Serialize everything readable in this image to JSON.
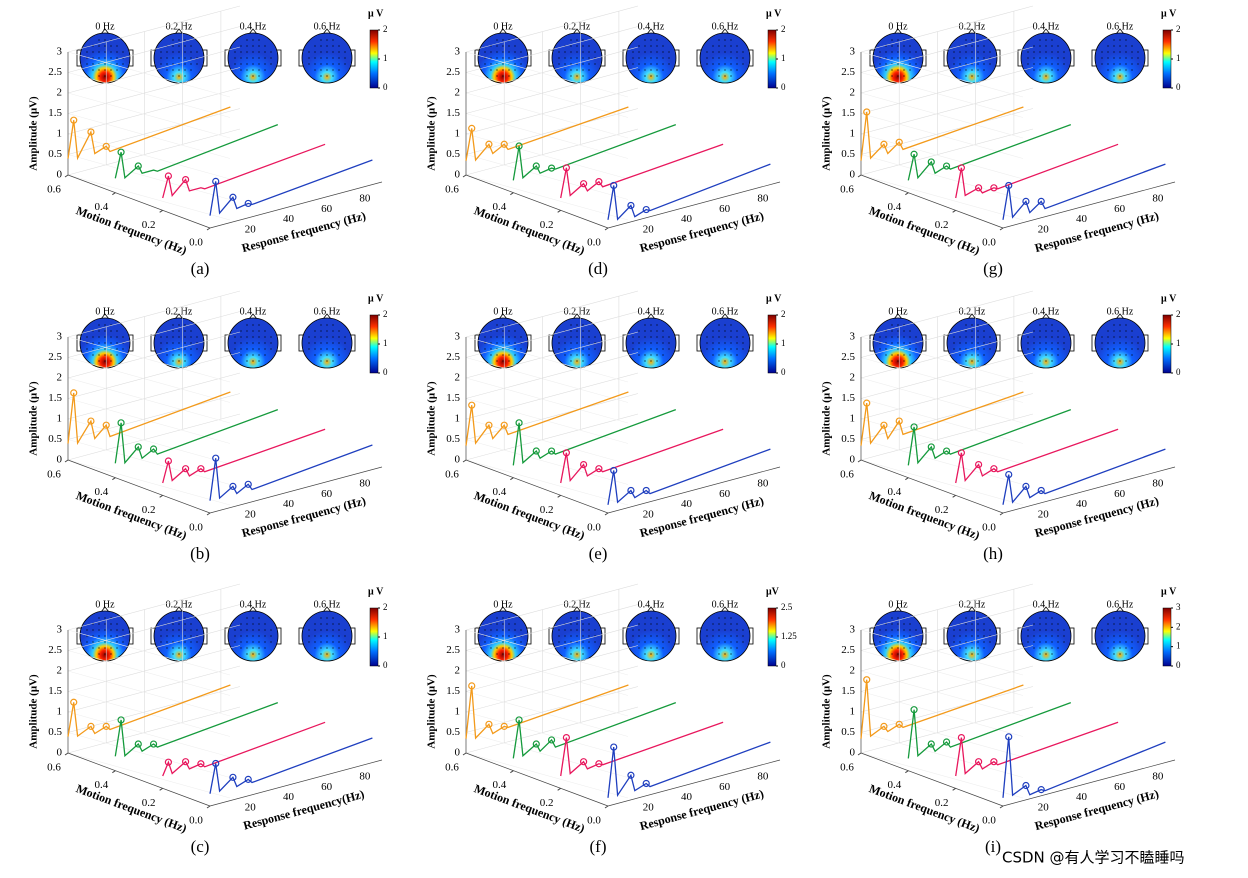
{
  "watermark": "CSDN @有人学习不瞌睡吗",
  "chart_data": [
    {
      "type": "waterfall",
      "label": "(a)",
      "cbar_label": "μ V",
      "cbar_lim": [
        0,
        2
      ],
      "cbar_ticks": [
        0,
        1,
        2
      ],
      "zlabel": "Amplitude (μV)",
      "ylabel": "Motion frequency (Hz)",
      "xlabel": "Response frequency (Hz)",
      "zlim": [
        0,
        3
      ],
      "zticks": [
        0,
        0.5,
        1,
        1.5,
        2,
        2.5,
        3
      ],
      "ylim": [
        0,
        0.6
      ],
      "yticks": [
        0.6,
        0.4,
        0.2,
        {
          "value": 0,
          "label": "0.0"
        }
      ],
      "xlim": [
        0,
        90
      ],
      "xticks": [
        20,
        40,
        60,
        80
      ],
      "x": [
        0,
        3,
        5,
        12,
        14,
        20,
        22,
        85
      ],
      "series": [
        {
          "name": "0 Hz",
          "motion": 0,
          "color": "#1f3fbf",
          "values": [
            0.3,
            1.1,
            0.3,
            0.6,
            0.3,
            0.35,
            0.3,
            0.6
          ]
        },
        {
          "name": "0.2 Hz",
          "motion": 0.2,
          "color": "#e8175d",
          "values": [
            0.3,
            0.8,
            0.3,
            0.6,
            0.3,
            0.3,
            0.25,
            0.55
          ]
        },
        {
          "name": "0.4 Hz",
          "motion": 0.4,
          "color": "#159a3c",
          "values": [
            0.35,
            0.95,
            0.3,
            0.5,
            0.3,
            0.3,
            0.25,
            0.6
          ]
        },
        {
          "name": "0.6 Hz",
          "motion": 0.6,
          "color": "#f39a1b",
          "values": [
            0.4,
            1.3,
            0.35,
            0.9,
            0.35,
            0.45,
            0.3,
            0.6
          ]
        }
      ]
    },
    {
      "type": "waterfall",
      "label": "(b)",
      "cbar_label": "μ V",
      "cbar_lim": [
        0,
        2
      ],
      "cbar_ticks": [
        0,
        1,
        2
      ],
      "zlabel": "Amplitude (μV)",
      "ylabel": "Motion frequency (Hz)",
      "xlabel": "Response frequency (Hz)",
      "zlim": [
        0,
        3
      ],
      "zticks": [
        0,
        0.5,
        1,
        1.5,
        2,
        2.5,
        3
      ],
      "ylim": [
        0,
        0.6
      ],
      "yticks": [
        0.6,
        0.4,
        0.2,
        {
          "value": 0,
          "label": "0.0"
        }
      ],
      "xlim": [
        0,
        90
      ],
      "xticks": [
        20,
        40,
        60,
        80
      ],
      "x": [
        0,
        3,
        5,
        12,
        14,
        20,
        22,
        85
      ],
      "series": [
        {
          "name": "0 Hz",
          "motion": 0,
          "color": "#1f3fbf",
          "values": [
            0.3,
            1.3,
            0.3,
            0.5,
            0.3,
            0.45,
            0.3,
            0.6
          ]
        },
        {
          "name": "0.2 Hz",
          "motion": 0.2,
          "color": "#e8175d",
          "values": [
            0.3,
            0.8,
            0.3,
            0.5,
            0.3,
            0.4,
            0.3,
            0.55
          ]
        },
        {
          "name": "0.4 Hz",
          "motion": 0.4,
          "color": "#159a3c",
          "values": [
            0.35,
            1.3,
            0.3,
            0.6,
            0.3,
            0.45,
            0.3,
            0.6
          ]
        },
        {
          "name": "0.6 Hz",
          "motion": 0.6,
          "color": "#f39a1b",
          "values": [
            0.4,
            1.6,
            0.35,
            0.8,
            0.35,
            0.6,
            0.3,
            0.6
          ]
        }
      ]
    },
    {
      "type": "waterfall",
      "label": "(c)",
      "cbar_label": "μ V",
      "cbar_lim": [
        0,
        2
      ],
      "cbar_ticks": [
        0,
        1,
        2
      ],
      "zlabel": "Amplitude (μV)",
      "ylabel": "Motion frequency (Hz)",
      "xlabel": "Response frequency(Hz)",
      "zlim": [
        0,
        3
      ],
      "zticks": [
        0,
        0.5,
        1,
        1.5,
        2,
        2.5,
        3
      ],
      "ylim": [
        0,
        0.6
      ],
      "yticks": [
        0.6,
        0.4,
        0.2,
        {
          "value": 0,
          "label": "0.0"
        }
      ],
      "xlim": [
        0,
        90
      ],
      "xticks": [
        20,
        40,
        60,
        80
      ],
      "x": [
        0,
        3,
        5,
        12,
        14,
        20,
        22,
        85
      ],
      "series": [
        {
          "name": "0 Hz",
          "motion": 0,
          "color": "#1f3fbf",
          "values": [
            0.3,
            1.0,
            0.3,
            0.55,
            0.3,
            0.4,
            0.3,
            0.6
          ]
        },
        {
          "name": "0.2 Hz",
          "motion": 0.2,
          "color": "#e8175d",
          "values": [
            0.3,
            0.6,
            0.3,
            0.5,
            0.3,
            0.35,
            0.25,
            0.55
          ]
        },
        {
          "name": "0.4 Hz",
          "motion": 0.4,
          "color": "#159a3c",
          "values": [
            0.35,
            1.2,
            0.3,
            0.5,
            0.3,
            0.4,
            0.3,
            0.6
          ]
        },
        {
          "name": "0.6 Hz",
          "motion": 0.6,
          "color": "#f39a1b",
          "values": [
            0.4,
            1.2,
            0.35,
            0.5,
            0.3,
            0.4,
            0.3,
            0.6
          ]
        }
      ]
    },
    {
      "type": "waterfall",
      "label": "(d)",
      "cbar_label": "μ V",
      "cbar_lim": [
        0,
        2
      ],
      "cbar_ticks": [
        0,
        1,
        2
      ],
      "zlabel": "Amplitude (μV)",
      "ylabel": "Motion frequency (Hz)",
      "xlabel": "Response frequency (Hz)",
      "zlim": [
        0,
        3
      ],
      "zticks": [
        0,
        0.5,
        1,
        1.5,
        2,
        2.5,
        3
      ],
      "ylim": [
        0,
        0.6
      ],
      "yticks": [
        0.6,
        0.4,
        0.2,
        {
          "value": 0,
          "label": "0.0"
        }
      ],
      "xlim": [
        0,
        90
      ],
      "xticks": [
        20,
        40,
        60,
        80
      ],
      "x": [
        0,
        3,
        5,
        12,
        14,
        20,
        22,
        85
      ],
      "series": [
        {
          "name": "0 Hz",
          "motion": 0,
          "color": "#1f3fbf",
          "values": [
            0.2,
            1.0,
            0.15,
            0.4,
            0.1,
            0.2,
            0.15,
            0.5
          ]
        },
        {
          "name": "0.2 Hz",
          "motion": 0.2,
          "color": "#e8175d",
          "values": [
            0.3,
            1.0,
            0.3,
            0.5,
            0.3,
            0.45,
            0.3,
            0.55
          ]
        },
        {
          "name": "0.4 Hz",
          "motion": 0.4,
          "color": "#159a3c",
          "values": [
            0.3,
            1.1,
            0.3,
            0.5,
            0.3,
            0.35,
            0.3,
            0.6
          ]
        },
        {
          "name": "0.6 Hz",
          "motion": 0.6,
          "color": "#f39a1b",
          "values": [
            0.35,
            1.1,
            0.3,
            0.6,
            0.35,
            0.5,
            0.35,
            0.6
          ]
        }
      ]
    },
    {
      "type": "waterfall",
      "label": "(e)",
      "cbar_label": "μ V",
      "cbar_lim": [
        0,
        2
      ],
      "cbar_ticks": [
        0,
        1,
        2
      ],
      "zlabel": "Amplitude (μV)",
      "ylabel": "Motion frequency (Hz)",
      "xlabel": "Response frequency (Hz)",
      "zlim": [
        0,
        3
      ],
      "zticks": [
        0,
        0.5,
        1,
        1.5,
        2,
        2.5,
        3
      ],
      "ylim": [
        0,
        0.6
      ],
      "yticks": [
        0.6,
        0.4,
        0.2,
        {
          "value": 0,
          "label": "0.0"
        }
      ],
      "xlim": [
        0,
        90
      ],
      "xticks": [
        20,
        40,
        60,
        80
      ],
      "x": [
        0,
        3,
        5,
        12,
        14,
        20,
        22,
        85
      ],
      "series": [
        {
          "name": "0 Hz",
          "motion": 0,
          "color": "#1f3fbf",
          "values": [
            0.2,
            1.0,
            0.2,
            0.4,
            0.2,
            0.3,
            0.2,
            0.5
          ]
        },
        {
          "name": "0.2 Hz",
          "motion": 0.2,
          "color": "#e8175d",
          "values": [
            0.3,
            1.0,
            0.3,
            0.6,
            0.3,
            0.4,
            0.3,
            0.55
          ]
        },
        {
          "name": "0.4 Hz",
          "motion": 0.4,
          "color": "#159a3c",
          "values": [
            0.3,
            1.3,
            0.3,
            0.5,
            0.3,
            0.4,
            0.3,
            0.6
          ]
        },
        {
          "name": "0.6 Hz",
          "motion": 0.6,
          "color": "#f39a1b",
          "values": [
            0.35,
            1.3,
            0.35,
            0.7,
            0.35,
            0.6,
            0.35,
            0.6
          ]
        }
      ]
    },
    {
      "type": "waterfall",
      "label": "(f)",
      "cbar_label": "μV",
      "cbar_lim": [
        0,
        2.5
      ],
      "cbar_ticks": [
        0,
        1.25,
        2.5
      ],
      "zlabel": "Amplitude (μV)",
      "ylabel": "Motion frequency (Hz)",
      "xlabel": "Response frequency (Hz)",
      "zlim": [
        0,
        3
      ],
      "zticks": [
        0,
        0.5,
        1,
        1.5,
        2,
        2.5,
        3
      ],
      "ylim": [
        0,
        0.6
      ],
      "yticks": [
        0.6,
        0.4,
        0.2,
        {
          "value": 0,
          "label": "0.0"
        }
      ],
      "xlim": [
        0,
        90
      ],
      "xticks": [
        20,
        40,
        60,
        80
      ],
      "x": [
        0,
        3,
        5,
        12,
        14,
        20,
        22,
        85
      ],
      "series": [
        {
          "name": "0 Hz",
          "motion": 0,
          "color": "#1f3fbf",
          "values": [
            0.2,
            1.4,
            0.2,
            0.6,
            0.2,
            0.3,
            0.2,
            0.5
          ]
        },
        {
          "name": "0.2 Hz",
          "motion": 0.2,
          "color": "#e8175d",
          "values": [
            0.3,
            1.2,
            0.3,
            0.5,
            0.3,
            0.35,
            0.3,
            0.55
          ]
        },
        {
          "name": "0.4 Hz",
          "motion": 0.4,
          "color": "#159a3c",
          "values": [
            0.3,
            1.2,
            0.3,
            0.5,
            0.3,
            0.5,
            0.3,
            0.6
          ]
        },
        {
          "name": "0.6 Hz",
          "motion": 0.6,
          "color": "#f39a1b",
          "values": [
            0.35,
            1.6,
            0.3,
            0.55,
            0.3,
            0.4,
            0.35,
            0.6
          ]
        }
      ]
    },
    {
      "type": "waterfall",
      "label": "(g)",
      "cbar_label": "μ V",
      "cbar_lim": [
        0,
        2
      ],
      "cbar_ticks": [
        0,
        1,
        2
      ],
      "zlabel": "Amplitude (μV)",
      "ylabel": "Motion frequency (Hz)",
      "xlabel": "Response frequency (Hz)",
      "zlim": [
        0,
        3
      ],
      "zticks": [
        0,
        0.5,
        1,
        1.5,
        2,
        2.5,
        3
      ],
      "ylim": [
        0,
        0.6
      ],
      "yticks": [
        0.6,
        0.4,
        0.2,
        {
          "value": 0,
          "label": "0.0"
        }
      ],
      "xlim": [
        0,
        90
      ],
      "xticks": [
        20,
        40,
        60,
        80
      ],
      "x": [
        0,
        3,
        5,
        12,
        14,
        20,
        22,
        85
      ],
      "series": [
        {
          "name": "0 Hz",
          "motion": 0,
          "color": "#1f3fbf",
          "values": [
            0.2,
            1.0,
            0.2,
            0.5,
            0.2,
            0.4,
            0.2,
            0.5
          ]
        },
        {
          "name": "0.2 Hz",
          "motion": 0.2,
          "color": "#e8175d",
          "values": [
            0.3,
            1.0,
            0.3,
            0.4,
            0.25,
            0.3,
            0.25,
            0.55
          ]
        },
        {
          "name": "0.4 Hz",
          "motion": 0.4,
          "color": "#159a3c",
          "values": [
            0.3,
            0.9,
            0.3,
            0.6,
            0.3,
            0.4,
            0.3,
            0.6
          ]
        },
        {
          "name": "0.6 Hz",
          "motion": 0.6,
          "color": "#f39a1b",
          "values": [
            0.35,
            1.5,
            0.35,
            0.6,
            0.35,
            0.55,
            0.35,
            0.6
          ]
        }
      ]
    },
    {
      "type": "waterfall",
      "label": "(h)",
      "cbar_label": "μ V",
      "cbar_lim": [
        0,
        2
      ],
      "cbar_ticks": [
        0,
        1,
        2
      ],
      "zlabel": "Amplitude (μV)",
      "ylabel": "Motion frequency (Hz)",
      "xlabel": "Response frequency (Hz)",
      "zlim": [
        0,
        3
      ],
      "zticks": [
        0,
        0.5,
        1,
        1.5,
        2,
        2.5,
        3
      ],
      "ylim": [
        0,
        0.6
      ],
      "yticks": [
        0.6,
        0.4,
        0.2,
        {
          "value": 0,
          "label": "0.0"
        }
      ],
      "xlim": [
        0,
        90
      ],
      "xticks": [
        20,
        40,
        60,
        80
      ],
      "x": [
        0,
        3,
        5,
        12,
        14,
        20,
        22,
        85
      ],
      "series": [
        {
          "name": "0 Hz",
          "motion": 0,
          "color": "#1f3fbf",
          "values": [
            0.2,
            0.9,
            0.2,
            0.5,
            0.2,
            0.3,
            0.2,
            0.5
          ]
        },
        {
          "name": "0.2 Hz",
          "motion": 0.2,
          "color": "#e8175d",
          "values": [
            0.3,
            1.0,
            0.3,
            0.6,
            0.3,
            0.4,
            0.3,
            0.55
          ]
        },
        {
          "name": "0.4 Hz",
          "motion": 0.4,
          "color": "#159a3c",
          "values": [
            0.3,
            1.2,
            0.3,
            0.6,
            0.3,
            0.4,
            0.3,
            0.6
          ]
        },
        {
          "name": "0.6 Hz",
          "motion": 0.6,
          "color": "#f39a1b",
          "values": [
            0.35,
            1.35,
            0.35,
            0.7,
            0.35,
            0.7,
            0.35,
            0.6
          ]
        }
      ]
    },
    {
      "type": "waterfall",
      "label": "(i)",
      "cbar_label": "μ V",
      "cbar_lim": [
        0,
        3
      ],
      "cbar_ticks": [
        0,
        1,
        2,
        3
      ],
      "zlabel": "Amplitude (μV)",
      "ylabel": "Motion frequency (Hz)",
      "xlabel": "Response frequency (Hz)",
      "zlim": [
        0,
        3
      ],
      "zticks": [
        0,
        0.5,
        1,
        1.5,
        2,
        2.5,
        3
      ],
      "ylim": [
        0,
        0.6
      ],
      "yticks": [
        0.6,
        0.4,
        0.2,
        {
          "value": 0,
          "label": "0.0"
        }
      ],
      "xlim": [
        0,
        90
      ],
      "xticks": [
        20,
        40,
        60,
        80
      ],
      "x": [
        0,
        3,
        5,
        12,
        14,
        20,
        22,
        85
      ],
      "series": [
        {
          "name": "0 Hz",
          "motion": 0,
          "color": "#1f3fbf",
          "values": [
            0.2,
            1.65,
            0.2,
            0.35,
            0.1,
            0.15,
            0.1,
            0.5
          ]
        },
        {
          "name": "0.2 Hz",
          "motion": 0.2,
          "color": "#e8175d",
          "values": [
            0.3,
            1.2,
            0.3,
            0.5,
            0.3,
            0.4,
            0.3,
            0.55
          ]
        },
        {
          "name": "0.4 Hz",
          "motion": 0.4,
          "color": "#159a3c",
          "values": [
            0.3,
            1.45,
            0.3,
            0.5,
            0.3,
            0.45,
            0.3,
            0.6
          ]
        },
        {
          "name": "0.6 Hz",
          "motion": 0.6,
          "color": "#f39a1b",
          "values": [
            0.35,
            1.75,
            0.35,
            0.5,
            0.35,
            0.45,
            0.35,
            0.6
          ]
        }
      ]
    }
  ]
}
